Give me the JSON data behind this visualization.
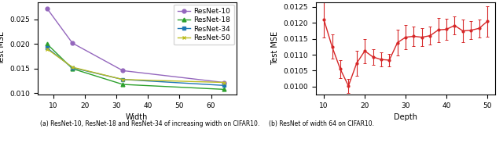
{
  "left": {
    "xlabel": "Width",
    "ylabel": "Test MSE",
    "xlim": [
      5,
      68
    ],
    "ylim": [
      0.00975,
      0.0285
    ],
    "yticks": [
      0.01,
      0.015,
      0.02,
      0.025
    ],
    "xticks": [
      10,
      20,
      30,
      40,
      50,
      60
    ],
    "series": [
      {
        "label": "ResNet-10",
        "color": "#9467bd",
        "marker": "o",
        "x": [
          8,
          16,
          32,
          64
        ],
        "y": [
          0.0272,
          0.0202,
          0.0146,
          0.0122
        ]
      },
      {
        "label": "ResNet-18",
        "color": "#2ca02c",
        "marker": "^",
        "x": [
          8,
          16,
          32,
          64
        ],
        "y": [
          0.02,
          0.015,
          0.0118,
          0.0108
        ]
      },
      {
        "label": "ResNet-34",
        "color": "#1f77b4",
        "marker": "s",
        "x": [
          8,
          16,
          32,
          64
        ],
        "y": [
          0.0192,
          0.0152,
          0.0128,
          0.0116
        ]
      },
      {
        "label": "ResNet-50",
        "color": "#bcbd22",
        "marker": "x",
        "x": [
          8,
          16,
          32,
          64
        ],
        "y": [
          0.019,
          0.0153,
          0.0128,
          0.0122
        ]
      }
    ]
  },
  "right": {
    "xlabel": "Depth",
    "ylabel": "Test MSE",
    "xlim": [
      8,
      52
    ],
    "ylim": [
      0.00975,
      0.01265
    ],
    "yticks": [
      0.01,
      0.0105,
      0.011,
      0.0115,
      0.012,
      0.0125
    ],
    "xticks": [
      10,
      20,
      30,
      40,
      50
    ],
    "color": "#d62728",
    "x": [
      10,
      12,
      14,
      16,
      18,
      20,
      22,
      24,
      26,
      28,
      30,
      32,
      34,
      36,
      38,
      40,
      42,
      44,
      46,
      48,
      50
    ],
    "y": [
      0.0121,
      0.01125,
      0.01055,
      0.01002,
      0.01073,
      0.01112,
      0.01093,
      0.01085,
      0.01083,
      0.01138,
      0.01155,
      0.01158,
      0.01155,
      0.0116,
      0.01178,
      0.0118,
      0.01192,
      0.01175,
      0.01177,
      0.01183,
      0.01205
    ],
    "yerr": [
      0.00055,
      0.00038,
      0.00028,
      0.00022,
      0.0004,
      0.00038,
      0.00025,
      0.00022,
      0.0002,
      0.0004,
      0.00038,
      0.0003,
      0.00028,
      0.00028,
      0.00038,
      0.00032,
      0.00028,
      0.00035,
      0.00028,
      0.00028,
      0.00048
    ]
  },
  "caption_left": "(a) ResNet-10, ResNet-18 and ResNet-34 of increasing width on CIFAR10.",
  "caption_right": "(b) ResNet of width 64 on CIFAR10."
}
